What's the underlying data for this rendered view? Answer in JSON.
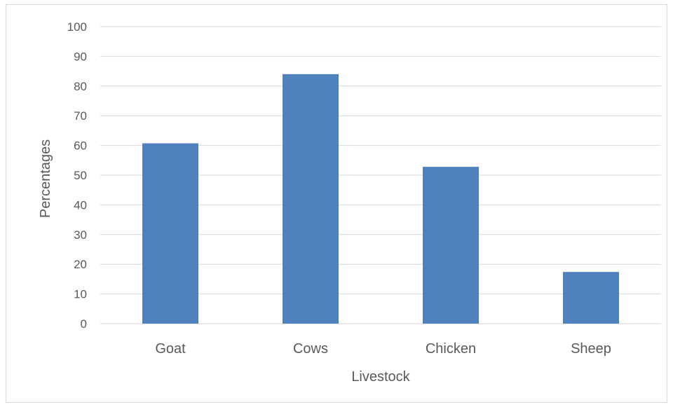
{
  "chart_data": {
    "type": "bar",
    "title": "",
    "xlabel": "Livestock",
    "ylabel": "Percentages",
    "categories": [
      "Goat",
      "Cows",
      "Chicken",
      "Sheep"
    ],
    "values": [
      60.7,
      84,
      52.8,
      17.4
    ],
    "ylim": [
      0,
      100
    ],
    "yticks": [
      "0",
      "10",
      "20",
      "30",
      "40",
      "50",
      "60",
      "70",
      "80",
      "90",
      "100"
    ],
    "grid": true,
    "legend": "none",
    "bar_color": "#4f81bd"
  }
}
